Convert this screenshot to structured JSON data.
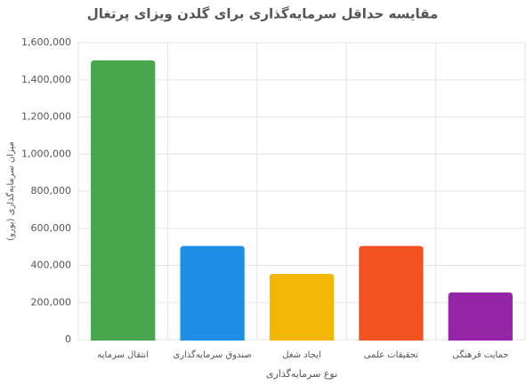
{
  "chart_data": {
    "type": "bar",
    "title": "مقایسه حداقل سرمایه‌گذاری برای گلدن ویزای پرتغال",
    "x_label": "نوع سرمایه‌گذاری",
    "y_label": "میزان سرمایه‌گذاری (یورو)",
    "categories": [
      "انتقال سرمایه",
      "صندوق سرمایه‌گذاری",
      "ایجاد شغل",
      "تحقیقات علمی",
      "حمایت فرهنگی"
    ],
    "values": [
      1500000,
      500000,
      350000,
      500000,
      250000
    ],
    "colors": [
      "#4caf50",
      "#2196f3",
      "#ffc107",
      "#ff5722",
      "#9c27b0"
    ],
    "ylim": [
      0,
      1600000
    ],
    "yticks": [
      0,
      {
        "value": 200000,
        "label": "200,000"
      },
      {
        "value": 400000,
        "label": "400,000"
      },
      {
        "value": 600000,
        "label": "600,000"
      },
      {
        "value": 800000,
        "label": "800,000"
      },
      {
        "value": 1000000,
        "label": "1,000,000"
      },
      {
        "value": 1200000,
        "label": "1,200,000"
      },
      {
        "value": 1400000,
        "label": "1,400,000"
      },
      {
        "value": 1600000,
        "label": "1,600,000"
      }
    ],
    "grid": true
  }
}
